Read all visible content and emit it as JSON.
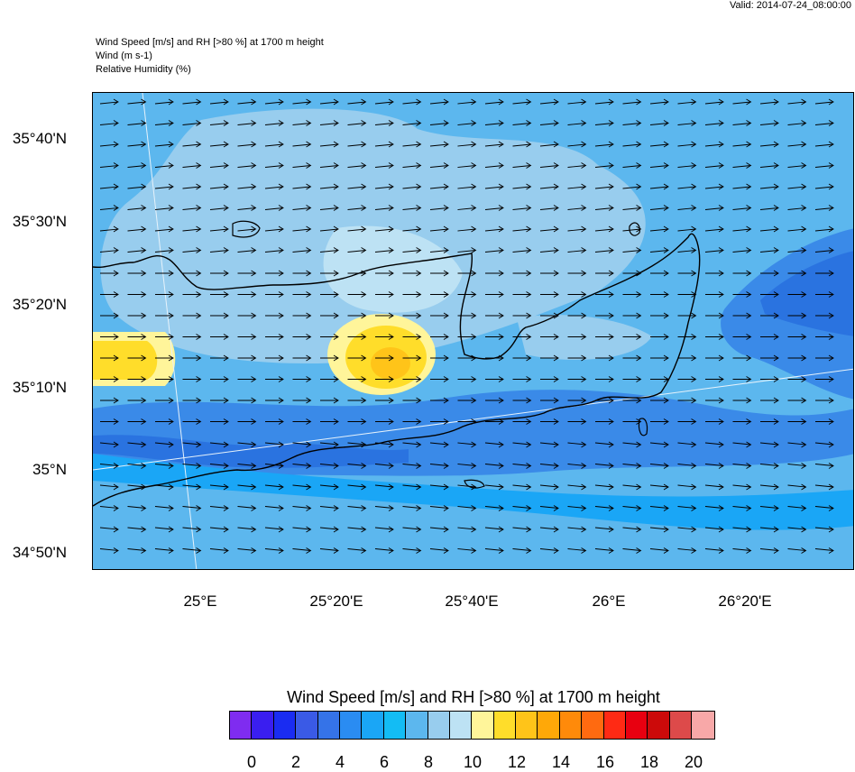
{
  "header": {
    "valid_time": "Valid: 2014-07-24_08:00:00",
    "title_line1": "Wind Speed [m/s] and RH [>80 %] at 1700 m height",
    "title_line2": "Wind   (m s-1)",
    "title_line3": "Relative Humidity   (%)"
  },
  "map": {
    "lat_labels": [
      "35°40'N",
      "35°30'N",
      "35°20'N",
      "35°10'N",
      "35°N",
      "34°50'N"
    ],
    "lon_labels": [
      "25°E",
      "25°20'E",
      "25°40'E",
      "26°E",
      "26°20'E"
    ],
    "region": "Crete",
    "field": "wind speed at 1700 m height",
    "wind_direction": "westerly",
    "vector_field": "uniform wind arrows pointing east"
  },
  "colorbar": {
    "title": "Wind Speed [m/s] and RH [>80 %] at 1700 m height",
    "colors": [
      "#7f2cf0",
      "#3a1ef0",
      "#1a2cf2",
      "#3a5ae6",
      "#3573e8",
      "#2a8cf2",
      "#1aa6f6",
      "#13bcf4",
      "#5cb7ee",
      "#98cdee",
      "#bde2f4",
      "#fff59a",
      "#ffdd2a",
      "#ffc419",
      "#ffa808",
      "#ff8a0a",
      "#ff6a10",
      "#ff2a14",
      "#e80010",
      "#cc0a0a",
      "#dd4a4a",
      "#f8a8a8"
    ],
    "tick_labels": [
      "0",
      "2",
      "4",
      "6",
      "8",
      "10",
      "12",
      "14",
      "16",
      "18",
      "20"
    ]
  }
}
